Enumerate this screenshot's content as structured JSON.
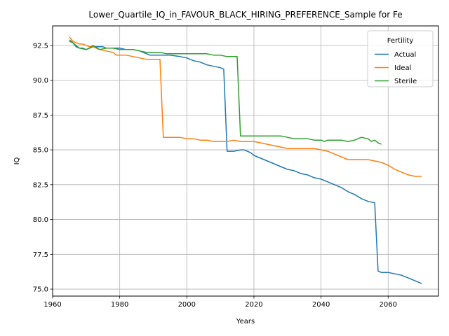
{
  "chart_data": {
    "type": "line",
    "title": "Lower_Quartile_IQ_in_FAVOUR_BLACK_HIRING_PREFERENCE_Sample for Fe",
    "xlabel": "Years",
    "ylabel": "IQ",
    "xlim": [
      1960,
      2075
    ],
    "ylim": [
      74.5,
      93.9
    ],
    "xticks": [
      1960,
      1980,
      2000,
      2020,
      2040,
      2060
    ],
    "xtick_labels": [
      "1960",
      "1980",
      "2000",
      "2020",
      "2040",
      "2060"
    ],
    "yticks": [
      75.0,
      77.5,
      80.0,
      82.5,
      85.0,
      87.5,
      90.0,
      92.5
    ],
    "ytick_labels": [
      "75.0",
      "77.5",
      "80.0",
      "82.5",
      "85.0",
      "87.5",
      "90.0",
      "92.5"
    ],
    "grid": true,
    "legend": {
      "title": "Fertility",
      "position": "top-right"
    },
    "series": [
      {
        "name": "Actual",
        "color": "#1f77b4",
        "points": [
          [
            1965,
            92.8
          ],
          [
            1966,
            92.7
          ],
          [
            1967,
            92.4
          ],
          [
            1968,
            92.3
          ],
          [
            1969,
            92.3
          ],
          [
            1970,
            92.2
          ],
          [
            1971,
            92.3
          ],
          [
            1972,
            92.4
          ],
          [
            1973,
            92.4
          ],
          [
            1975,
            92.4
          ],
          [
            1976,
            92.3
          ],
          [
            1978,
            92.3
          ],
          [
            1980,
            92.3
          ],
          [
            1982,
            92.2
          ],
          [
            1984,
            92.2
          ],
          [
            1986,
            92.1
          ],
          [
            1988,
            91.9
          ],
          [
            1989,
            91.8
          ],
          [
            1992,
            91.8
          ],
          [
            1995,
            91.8
          ],
          [
            1998,
            91.7
          ],
          [
            2000,
            91.6
          ],
          [
            2002,
            91.4
          ],
          [
            2004,
            91.3
          ],
          [
            2006,
            91.1
          ],
          [
            2008,
            91.0
          ],
          [
            2010,
            90.9
          ],
          [
            2011,
            90.8
          ],
          [
            2012,
            84.9
          ],
          [
            2014,
            84.9
          ],
          [
            2016,
            85.0
          ],
          [
            2017,
            85.0
          ],
          [
            2018,
            84.9
          ],
          [
            2019,
            84.8
          ],
          [
            2020,
            84.6
          ],
          [
            2022,
            84.4
          ],
          [
            2024,
            84.2
          ],
          [
            2026,
            84.0
          ],
          [
            2028,
            83.8
          ],
          [
            2030,
            83.6
          ],
          [
            2032,
            83.5
          ],
          [
            2034,
            83.3
          ],
          [
            2036,
            83.2
          ],
          [
            2038,
            83.0
          ],
          [
            2040,
            82.9
          ],
          [
            2042,
            82.7
          ],
          [
            2044,
            82.5
          ],
          [
            2046,
            82.3
          ],
          [
            2048,
            82.0
          ],
          [
            2050,
            81.8
          ],
          [
            2052,
            81.5
          ],
          [
            2054,
            81.3
          ],
          [
            2056,
            81.2
          ],
          [
            2057,
            76.3
          ],
          [
            2058,
            76.2
          ],
          [
            2060,
            76.2
          ],
          [
            2062,
            76.1
          ],
          [
            2064,
            76.0
          ],
          [
            2066,
            75.8
          ],
          [
            2068,
            75.6
          ],
          [
            2070,
            75.4
          ]
        ]
      },
      {
        "name": "Ideal",
        "color": "#ff7f0e",
        "points": [
          [
            1965,
            93.1
          ],
          [
            1966,
            92.8
          ],
          [
            1967,
            92.7
          ],
          [
            1968,
            92.6
          ],
          [
            1969,
            92.6
          ],
          [
            1970,
            92.5
          ],
          [
            1971,
            92.4
          ],
          [
            1972,
            92.4
          ],
          [
            1973,
            92.3
          ],
          [
            1974,
            92.2
          ],
          [
            1976,
            92.1
          ],
          [
            1978,
            92.0
          ],
          [
            1979,
            91.8
          ],
          [
            1982,
            91.8
          ],
          [
            1984,
            91.7
          ],
          [
            1986,
            91.6
          ],
          [
            1988,
            91.5
          ],
          [
            1990,
            91.5
          ],
          [
            1992,
            91.5
          ],
          [
            1993,
            85.9
          ],
          [
            1995,
            85.9
          ],
          [
            1998,
            85.9
          ],
          [
            2000,
            85.8
          ],
          [
            2002,
            85.8
          ],
          [
            2004,
            85.7
          ],
          [
            2006,
            85.7
          ],
          [
            2008,
            85.6
          ],
          [
            2010,
            85.6
          ],
          [
            2012,
            85.6
          ],
          [
            2014,
            85.7
          ],
          [
            2016,
            85.6
          ],
          [
            2018,
            85.6
          ],
          [
            2020,
            85.6
          ],
          [
            2022,
            85.5
          ],
          [
            2024,
            85.4
          ],
          [
            2026,
            85.3
          ],
          [
            2028,
            85.2
          ],
          [
            2030,
            85.1
          ],
          [
            2032,
            85.1
          ],
          [
            2034,
            85.1
          ],
          [
            2036,
            85.1
          ],
          [
            2038,
            85.1
          ],
          [
            2040,
            85.0
          ],
          [
            2042,
            84.9
          ],
          [
            2044,
            84.7
          ],
          [
            2046,
            84.5
          ],
          [
            2048,
            84.3
          ],
          [
            2050,
            84.3
          ],
          [
            2052,
            84.3
          ],
          [
            2054,
            84.3
          ],
          [
            2056,
            84.2
          ],
          [
            2058,
            84.1
          ],
          [
            2060,
            83.9
          ],
          [
            2062,
            83.6
          ],
          [
            2064,
            83.4
          ],
          [
            2066,
            83.2
          ],
          [
            2068,
            83.1
          ],
          [
            2070,
            83.1
          ]
        ]
      },
      {
        "name": "Sterile",
        "color": "#2ca02c",
        "points": [
          [
            1965,
            92.9
          ],
          [
            1966,
            92.7
          ],
          [
            1967,
            92.5
          ],
          [
            1968,
            92.3
          ],
          [
            1970,
            92.2
          ],
          [
            1971,
            92.3
          ],
          [
            1972,
            92.5
          ],
          [
            1974,
            92.2
          ],
          [
            1976,
            92.3
          ],
          [
            1978,
            92.3
          ],
          [
            1980,
            92.2
          ],
          [
            1982,
            92.2
          ],
          [
            1984,
            92.2
          ],
          [
            1986,
            92.1
          ],
          [
            1988,
            92.0
          ],
          [
            1990,
            92.0
          ],
          [
            1992,
            92.0
          ],
          [
            1994,
            91.9
          ],
          [
            1996,
            91.9
          ],
          [
            1998,
            91.9
          ],
          [
            2000,
            91.9
          ],
          [
            2002,
            91.9
          ],
          [
            2004,
            91.9
          ],
          [
            2006,
            91.9
          ],
          [
            2008,
            91.8
          ],
          [
            2010,
            91.8
          ],
          [
            2012,
            91.7
          ],
          [
            2014,
            91.7
          ],
          [
            2015,
            91.7
          ],
          [
            2016,
            86.0
          ],
          [
            2018,
            86.0
          ],
          [
            2020,
            86.0
          ],
          [
            2022,
            86.0
          ],
          [
            2024,
            86.0
          ],
          [
            2026,
            86.0
          ],
          [
            2028,
            86.0
          ],
          [
            2030,
            85.9
          ],
          [
            2032,
            85.8
          ],
          [
            2034,
            85.8
          ],
          [
            2036,
            85.8
          ],
          [
            2038,
            85.7
          ],
          [
            2040,
            85.7
          ],
          [
            2041,
            85.6
          ],
          [
            2042,
            85.7
          ],
          [
            2044,
            85.7
          ],
          [
            2046,
            85.7
          ],
          [
            2048,
            85.6
          ],
          [
            2050,
            85.7
          ],
          [
            2052,
            85.9
          ],
          [
            2054,
            85.8
          ],
          [
            2055,
            85.6
          ],
          [
            2056,
            85.7
          ],
          [
            2057,
            85.5
          ],
          [
            2058,
            85.4
          ]
        ]
      }
    ]
  }
}
